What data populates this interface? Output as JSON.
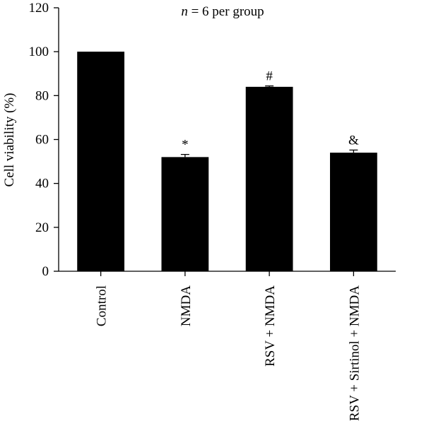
{
  "chart_data": {
    "type": "bar",
    "categories": [
      "Control",
      "NMDA",
      "RSV + NMDA",
      "RSV + Sirtinol + NMDA"
    ],
    "values": [
      100,
      52,
      84,
      54
    ],
    "errors": [
      0,
      1.2,
      0.4,
      1.2
    ],
    "significance": [
      "",
      "*",
      "#",
      "&"
    ],
    "annotation": {
      "italic": "n",
      "rest": " = 6 per group"
    },
    "ylabel": "Cell viability (%)",
    "xlabel": "",
    "ylim": [
      0,
      120
    ],
    "yticks": [
      0,
      20,
      40,
      60,
      80,
      100,
      120
    ],
    "grid": false,
    "legend": "none",
    "bar_color": "#000000"
  }
}
